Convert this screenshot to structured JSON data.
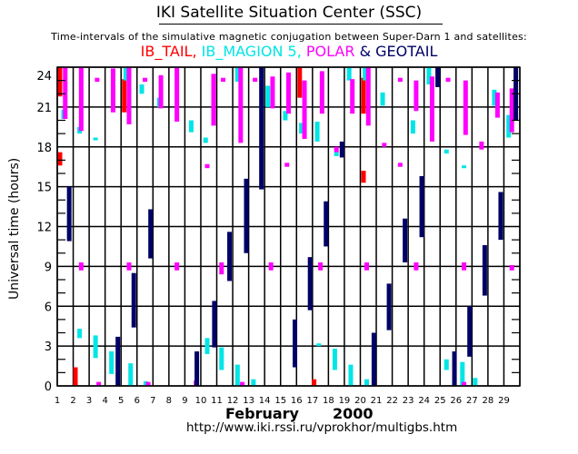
{
  "header": {
    "title": "IKI Satellite Situation Center (SSC)",
    "subtitle": "Time-intervals of the simulative magnetic conjugation between Super-Darn 1 and satellites:"
  },
  "legend": [
    {
      "name": "IB_TAIL",
      "text": "IB_TAIL, ",
      "color": "#ff0000"
    },
    {
      "name": "IB_MAGION 5",
      "text": "IB_MAGION 5, ",
      "color": "#00e5e5"
    },
    {
      "name": "POLAR",
      "text": "POLAR ",
      "color": "#ff00ff"
    },
    {
      "name": "GEOTAIL",
      "text": "& GEOTAIL",
      "color": "#000066"
    }
  ],
  "footer": {
    "month": "February",
    "year": "2000",
    "url": "http://www.iki.rssi.ru/vprokhor/multigbs.htm"
  },
  "chart_data": {
    "type": "interval-timeline",
    "title": "IKI Satellite Situation Center (SSC)",
    "subtitle": "Time-intervals of the simulative magnetic conjugation between Super-Darn 1 and satellites:",
    "xlabel": "February 2000",
    "ylabel": "Universal time (hours)",
    "x_ticks": [
      1,
      2,
      3,
      4,
      5,
      6,
      7,
      8,
      9,
      10,
      11,
      12,
      13,
      14,
      15,
      16,
      17,
      18,
      19,
      20,
      21,
      22,
      23,
      24,
      25,
      26,
      27,
      28,
      29
    ],
    "xlim": [
      1,
      30
    ],
    "y_ticks": [
      0,
      3,
      6,
      9,
      12,
      15,
      18,
      21,
      24
    ],
    "ylim": [
      0,
      24
    ],
    "grid": true,
    "series": [
      {
        "name": "IB_TAIL",
        "color": "#ff0000",
        "intervals": [
          {
            "day": 1.17,
            "start": 21.8,
            "end": 24.0
          },
          {
            "day": 1.17,
            "start": 16.6,
            "end": 17.6
          },
          {
            "day": 2.14,
            "start": 0.0,
            "end": 1.4
          },
          {
            "day": 5.2,
            "start": 20.6,
            "end": 23.1
          },
          {
            "day": 16.2,
            "start": 21.7,
            "end": 24.0
          },
          {
            "day": 17.1,
            "start": 0.0,
            "end": 0.5
          },
          {
            "day": 20.2,
            "start": 20.5,
            "end": 23.2
          },
          {
            "day": 20.2,
            "start": 15.3,
            "end": 16.2
          }
        ]
      },
      {
        "name": "IB_MAGION 5",
        "color": "#00e5e5",
        "intervals": [
          {
            "day": 1.4,
            "start": 20.1,
            "end": 20.8
          },
          {
            "day": 2.4,
            "start": 19.0,
            "end": 19.5
          },
          {
            "day": 2.4,
            "start": 3.6,
            "end": 4.3
          },
          {
            "day": 3.4,
            "start": 18.5,
            "end": 18.7
          },
          {
            "day": 3.4,
            "start": 2.1,
            "end": 3.8
          },
          {
            "day": 4.4,
            "start": 0.9,
            "end": 2.6
          },
          {
            "day": 5.3,
            "start": 23.0,
            "end": 24.0
          },
          {
            "day": 5.6,
            "start": 0.0,
            "end": 1.7
          },
          {
            "day": 6.3,
            "start": 22.0,
            "end": 22.7
          },
          {
            "day": 6.55,
            "start": 0.0,
            "end": 0.35
          },
          {
            "day": 7.4,
            "start": 21.0,
            "end": 21.7
          },
          {
            "day": 9.4,
            "start": 19.1,
            "end": 20.0
          },
          {
            "day": 10.3,
            "start": 18.3,
            "end": 18.7
          },
          {
            "day": 10.4,
            "start": 2.4,
            "end": 3.6
          },
          {
            "day": 11.3,
            "start": 1.2,
            "end": 2.9
          },
          {
            "day": 12.3,
            "start": 22.9,
            "end": 24.0
          },
          {
            "day": 12.3,
            "start": 0.0,
            "end": 1.6
          },
          {
            "day": 13.3,
            "start": 0.0,
            "end": 0.5
          },
          {
            "day": 14.2,
            "start": 21.0,
            "end": 22.6
          },
          {
            "day": 15.3,
            "start": 20.0,
            "end": 20.7
          },
          {
            "day": 16.3,
            "start": 19.0,
            "end": 19.8
          },
          {
            "day": 17.3,
            "start": 18.4,
            "end": 19.9
          },
          {
            "day": 17.4,
            "start": 3.0,
            "end": 3.2
          },
          {
            "day": 18.4,
            "start": 1.2,
            "end": 2.8
          },
          {
            "day": 18.5,
            "start": 17.3,
            "end": 17.6
          },
          {
            "day": 19.3,
            "start": 23.0,
            "end": 24.0
          },
          {
            "day": 19.4,
            "start": 0.0,
            "end": 1.6
          },
          {
            "day": 20.4,
            "start": 0.0,
            "end": 0.5
          },
          {
            "day": 20.3,
            "start": 23.0,
            "end": 24.0
          },
          {
            "day": 21.4,
            "start": 21.1,
            "end": 22.1
          },
          {
            "day": 23.3,
            "start": 19.0,
            "end": 20.0
          },
          {
            "day": 24.3,
            "start": 22.7,
            "end": 24.0
          },
          {
            "day": 25.4,
            "start": 17.5,
            "end": 17.8
          },
          {
            "day": 25.4,
            "start": 1.2,
            "end": 2.0
          },
          {
            "day": 26.4,
            "start": 0.0,
            "end": 1.8
          },
          {
            "day": 26.5,
            "start": 16.4,
            "end": 16.6
          },
          {
            "day": 27.2,
            "start": 0.0,
            "end": 0.6
          },
          {
            "day": 28.4,
            "start": 21.1,
            "end": 22.3
          },
          {
            "day": 29.3,
            "start": 18.7,
            "end": 20.4
          }
        ]
      },
      {
        "name": "POLAR",
        "color": "#ff00ff",
        "intervals": [
          {
            "day": 1.5,
            "start": 20.1,
            "end": 24.0
          },
          {
            "day": 2.5,
            "start": 19.2,
            "end": 24.0
          },
          {
            "day": 2.5,
            "start": 8.7,
            "end": 9.3
          },
          {
            "day": 3.5,
            "start": 22.9,
            "end": 23.2
          },
          {
            "day": 3.6,
            "start": 0.0,
            "end": 0.3
          },
          {
            "day": 4.5,
            "start": 20.6,
            "end": 23.9
          },
          {
            "day": 5.5,
            "start": 19.7,
            "end": 24.0
          },
          {
            "day": 5.5,
            "start": 8.7,
            "end": 9.3
          },
          {
            "day": 6.5,
            "start": 22.9,
            "end": 23.2
          },
          {
            "day": 6.7,
            "start": 0.0,
            "end": 0.3
          },
          {
            "day": 7.5,
            "start": 20.9,
            "end": 23.4
          },
          {
            "day": 8.5,
            "start": 8.7,
            "end": 9.3
          },
          {
            "day": 8.5,
            "start": 19.9,
            "end": 24.0
          },
          {
            "day": 9.7,
            "start": 0.0,
            "end": 0.4
          },
          {
            "day": 10.4,
            "start": 16.4,
            "end": 16.7
          },
          {
            "day": 10.8,
            "start": 19.6,
            "end": 23.5
          },
          {
            "day": 11.4,
            "start": 22.9,
            "end": 23.2
          },
          {
            "day": 11.3,
            "start": 8.4,
            "end": 9.3
          },
          {
            "day": 12.5,
            "start": 18.3,
            "end": 24.0
          },
          {
            "day": 12.6,
            "start": 0.0,
            "end": 0.3
          },
          {
            "day": 13.4,
            "start": 22.9,
            "end": 23.2
          },
          {
            "day": 14.5,
            "start": 20.9,
            "end": 23.3
          },
          {
            "day": 14.4,
            "start": 8.7,
            "end": 9.3
          },
          {
            "day": 15.5,
            "start": 20.5,
            "end": 23.6
          },
          {
            "day": 15.4,
            "start": 16.5,
            "end": 16.8
          },
          {
            "day": 16.5,
            "start": 18.6,
            "end": 23.0
          },
          {
            "day": 17.5,
            "start": 8.7,
            "end": 9.3
          },
          {
            "day": 17.6,
            "start": 20.5,
            "end": 23.7
          },
          {
            "day": 18.5,
            "start": 17.6,
            "end": 18.0
          },
          {
            "day": 19.5,
            "start": 20.5,
            "end": 23.1
          },
          {
            "day": 20.5,
            "start": 19.6,
            "end": 24.0
          },
          {
            "day": 20.4,
            "start": 8.7,
            "end": 9.3
          },
          {
            "day": 21.5,
            "start": 18.0,
            "end": 18.3
          },
          {
            "day": 22.5,
            "start": 22.9,
            "end": 23.2
          },
          {
            "day": 22.5,
            "start": 16.5,
            "end": 16.8
          },
          {
            "day": 23.5,
            "start": 8.7,
            "end": 9.3
          },
          {
            "day": 23.5,
            "start": 20.7,
            "end": 23.0
          },
          {
            "day": 24.5,
            "start": 18.4,
            "end": 23.3
          },
          {
            "day": 25.5,
            "start": 22.9,
            "end": 23.2
          },
          {
            "day": 26.5,
            "start": 0.0,
            "end": 0.3
          },
          {
            "day": 26.5,
            "start": 8.7,
            "end": 9.3
          },
          {
            "day": 26.6,
            "start": 18.9,
            "end": 23.0
          },
          {
            "day": 27.6,
            "start": 17.8,
            "end": 18.4
          },
          {
            "day": 28.6,
            "start": 20.2,
            "end": 22.1
          },
          {
            "day": 29.5,
            "start": 8.7,
            "end": 9.1
          },
          {
            "day": 29.5,
            "start": 19.1,
            "end": 22.4
          }
        ]
      },
      {
        "name": "GEOTAIL",
        "color": "#000066",
        "intervals": [
          {
            "day": 1.75,
            "start": 10.9,
            "end": 15.0
          },
          {
            "day": 4.8,
            "start": 0.0,
            "end": 3.7
          },
          {
            "day": 5.8,
            "start": 4.4,
            "end": 8.5
          },
          {
            "day": 6.85,
            "start": 9.6,
            "end": 13.3
          },
          {
            "day": 9.75,
            "start": 0.0,
            "end": 2.6
          },
          {
            "day": 10.85,
            "start": 2.9,
            "end": 6.4
          },
          {
            "day": 11.8,
            "start": 7.9,
            "end": 11.6
          },
          {
            "day": 12.85,
            "start": 10.0,
            "end": 15.6
          },
          {
            "day": 13.8,
            "start": 14.8,
            "end": 24.0
          },
          {
            "day": 15.9,
            "start": 1.4,
            "end": 5.0
          },
          {
            "day": 16.85,
            "start": 5.7,
            "end": 9.7
          },
          {
            "day": 17.85,
            "start": 10.5,
            "end": 13.9
          },
          {
            "day": 18.85,
            "start": 17.2,
            "end": 18.4
          },
          {
            "day": 20.85,
            "start": 0.0,
            "end": 4.0
          },
          {
            "day": 21.8,
            "start": 4.2,
            "end": 7.7
          },
          {
            "day": 22.8,
            "start": 9.3,
            "end": 12.6
          },
          {
            "day": 23.85,
            "start": 11.2,
            "end": 15.8
          },
          {
            "day": 24.85,
            "start": 22.5,
            "end": 24.0
          },
          {
            "day": 25.9,
            "start": 0.0,
            "end": 2.6
          },
          {
            "day": 26.85,
            "start": 2.2,
            "end": 6.0
          },
          {
            "day": 27.8,
            "start": 6.8,
            "end": 10.6
          },
          {
            "day": 28.8,
            "start": 11.0,
            "end": 14.6
          },
          {
            "day": 29.75,
            "start": 20.0,
            "end": 24.0
          }
        ]
      }
    ]
  }
}
